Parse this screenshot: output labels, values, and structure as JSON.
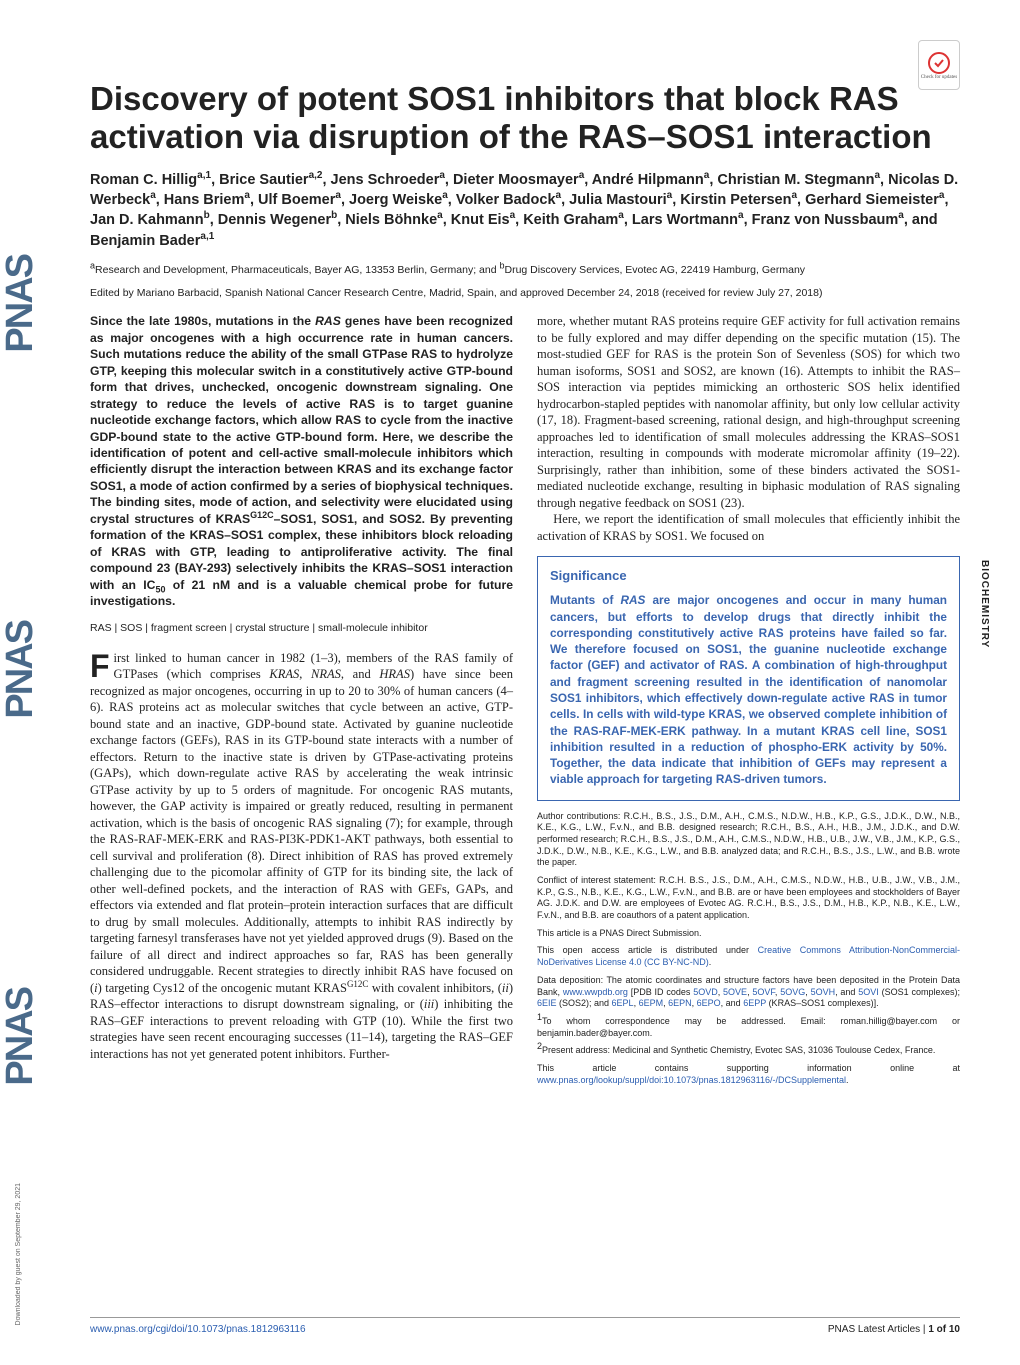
{
  "journal": {
    "sidebar_text": "PNAS",
    "side_right": "BIOCHEMISTRY",
    "side_left": "Downloaded by guest on September 29, 2021",
    "check_updates": "Check for updates"
  },
  "title": "Discovery of potent SOS1 inhibitors that block RAS activation via disruption of the RAS–SOS1 interaction",
  "authors_html": "Roman C. Hillig<sup>a,1</sup>, Brice Sautier<sup>a,2</sup>, Jens Schroeder<sup>a</sup>, Dieter Moosmayer<sup>a</sup>, André Hilpmann<sup>a</sup>, Christian M. Stegmann<sup>a</sup>, Nicolas D. Werbeck<sup>a</sup>, Hans Briem<sup>a</sup>, Ulf Boemer<sup>a</sup>, Joerg Weiske<sup>a</sup>, Volker Badock<sup>a</sup>, Julia Mastouri<sup>a</sup>, Kirstin Petersen<sup>a</sup>, Gerhard Siemeister<sup>a</sup>, Jan D. Kahmann<sup>b</sup>, Dennis Wegener<sup>b</sup>, Niels Böhnke<sup>a</sup>, Knut Eis<sup>a</sup>, Keith Graham<sup>a</sup>, Lars Wortmann<sup>a</sup>, Franz von Nussbaum<sup>a</sup>, and Benjamin Bader<sup>a,1</sup>",
  "affiliations": "<sup>a</sup>Research and Development, Pharmaceuticals, Bayer AG, 13353 Berlin, Germany; and <sup>b</sup>Drug Discovery Services, Evotec AG, 22419 Hamburg, Germany",
  "edited_by": "Edited by Mariano Barbacid, Spanish National Cancer Research Centre, Madrid, Spain, and approved December 24, 2018 (received for review July 27, 2018)",
  "abstract": "Since the late 1980s, mutations in the <i>RAS</i> genes have been recognized as major oncogenes with a high occurrence rate in human cancers. Such mutations reduce the ability of the small GTPase RAS to hydrolyze GTP, keeping this molecular switch in a constitutively active GTP-bound form that drives, unchecked, oncogenic downstream signaling. One strategy to reduce the levels of active RAS is to target guanine nucleotide exchange factors, which allow RAS to cycle from the inactive GDP-bound state to the active GTP-bound form. Here, we describe the identification of potent and cell-active small-molecule inhibitors which efficiently disrupt the interaction between KRAS and its exchange factor SOS1, a mode of action confirmed by a series of biophysical techniques. The binding sites, mode of action, and selectivity were elucidated using crystal structures of KRAS<sup>G12C</sup>–SOS1, SOS1, and SOS2. By preventing formation of the KRAS–SOS1 complex, these inhibitors block reloading of KRAS with GTP, leading to antiproliferative activity. The final compound 23 (BAY-293) selectively inhibits the KRAS–SOS1 interaction with an IC<sub>50</sub> of 21 nM and is a valuable chemical probe for future investigations.",
  "keywords": "RAS | SOS | fragment screen | crystal structure | small-molecule inhibitor",
  "body_left": "irst linked to human cancer in 1982 (1–3), members of the RAS family of GTPases (which comprises <i>KRAS</i>, <i>NRAS</i>, and <i>HRAS</i>) have since been recognized as major oncogenes, occurring in up to 20 to 30% of human cancers (4–6). RAS proteins act as molecular switches that cycle between an active, GTP-bound state and an inactive, GDP-bound state. Activated by guanine nucleotide exchange factors (GEFs), RAS in its GTP-bound state interacts with a number of effectors. Return to the inactive state is driven by GTPase-activating proteins (GAPs), which down-regulate active RAS by accelerating the weak intrinsic GTPase activity by up to 5 orders of magnitude. For oncogenic RAS mutants, however, the GAP activity is impaired or greatly reduced, resulting in permanent activation, which is the basis of oncogenic RAS signaling (7); for example, through the RAS-RAF-MEK-ERK and RAS-PI3K-PDK1-AKT pathways, both essential to cell survival and proliferation (8). Direct inhibition of RAS has proved extremely challenging due to the picomolar affinity of GTP for its binding site, the lack of other well-defined pockets, and the interaction of RAS with GEFs, GAPs, and effectors via extended and flat protein–protein interaction surfaces that are difficult to drug by small molecules. Additionally, attempts to inhibit RAS indirectly by targeting farnesyl transferases have not yet yielded approved drugs (9). Based on the failure of all direct and indirect approaches so far, RAS has been generally considered undruggable. Recent strategies to directly inhibit RAS have focused on (<i>i</i>) targeting Cys12 of the oncogenic mutant KRAS<sup>G12C</sup> with covalent inhibitors, (<i>ii</i>) RAS–effector interactions to disrupt downstream signaling, or (<i>iii</i>) inhibiting the RAS–GEF interactions to prevent reloading with GTP (10). While the first two strategies have seen recent encouraging successes (11–14), targeting the RAS–GEF interactions has not yet generated potent inhibitors. Further-",
  "body_right_top": "more, whether mutant RAS proteins require GEF activity for full activation remains to be fully explored and may differ depending on the specific mutation (15). The most-studied GEF for RAS is the protein Son of Sevenless (SOS) for which two human isoforms, SOS1 and SOS2, are known (16). Attempts to inhibit the RAS–SOS interaction via peptides mimicking an orthosteric SOS helix identified hydrocarbon-stapled peptides with nanomolar affinity, but only low cellular activity (17, 18). Fragment-based screening, rational design, and high-throughput screening approaches led to identification of small molecules addressing the KRAS–SOS1 interaction, resulting in compounds with moderate micromolar affinity (19–22). Surprisingly, rather than inhibition, some of these binders activated the SOS1-mediated nucleotide exchange, resulting in biphasic modulation of RAS signaling through negative feedback on SOS1 (23).",
  "body_right_p2": "Here, we report the identification of small molecules that efficiently inhibit the activation of KRAS by SOS1. We focused on",
  "significance": {
    "title": "Significance",
    "body": "Mutants of <i>RAS</i> are major oncogenes and occur in many human cancers, but efforts to develop drugs that directly inhibit the corresponding constitutively active RAS proteins have failed so far. We therefore focused on SOS1, the guanine nucleotide exchange factor (GEF) and activator of RAS. A combination of high-throughput and fragment screening resulted in the identification of nanomolar SOS1 inhibitors, which effectively down-regulate active RAS in tumor cells. In cells with wild-type KRAS, we observed complete inhibition of the RAS-RAF-MEK-ERK pathway. In a mutant KRAS cell line, SOS1 inhibition resulted in a reduction of phospho-ERK activity by 50%. Together, the data indicate that inhibition of GEFs may represent a viable approach for targeting RAS-driven tumors."
  },
  "fineprint": {
    "author_contrib": "Author contributions: R.C.H., B.S., J.S., D.M., A.H., C.M.S., N.D.W., H.B., K.P., G.S., J.D.K., D.W., N.B., K.E., K.G., L.W., F.v.N., and B.B. designed research; R.C.H., B.S., A.H., H.B., J.M., J.D.K., and D.W. performed research; R.C.H., B.S., J.S., D.M., A.H., C.M.S., N.D.W., H.B., U.B., J.W., V.B., J.M., K.P., G.S., J.D.K., D.W., N.B., K.E., K.G., L.W., and B.B. analyzed data; and R.C.H., B.S., J.S., L.W., and B.B. wrote the paper.",
    "conflict": "Conflict of interest statement: R.C.H. B.S., J.S., D.M., A.H., C.M.S., N.D.W., H.B., U.B., J.W., V.B., J.M., K.P., G.S., N.B., K.E., K.G., L.W., F.v.N., and B.B. are or have been employees and stockholders of Bayer AG. J.D.K. and D.W. are employees of Evotec AG. R.C.H., B.S., J.S., D.M., H.B., K.P., N.B., K.E., L.W., F.v.N., and B.B. are coauthors of a patent application.",
    "direct_sub": "This article is a PNAS Direct Submission.",
    "license_pre": "This open access article is distributed under ",
    "license_link": "Creative Commons Attribution-NonCommercial-NoDerivatives License 4.0 (CC BY-NC-ND)",
    "data_dep": "Data deposition: The atomic coordinates and structure factors have been deposited in the Protein Data Bank, <a>www.wwpdb.org</a> [PDB ID codes <a>5OVD</a>, <a>5OVE</a>, <a>5OVF</a>, <a>5OVG</a>, <a>5OVH</a>, and <a>5OVI</a> (SOS1 complexes); <a>6EIE</a> (SOS2); and <a>6EPL</a>, <a>6EPM</a>, <a>6EPN</a>, <a>6EPO</a>, and <a>6EPP</a> (KRAS–SOS1 complexes)].",
    "corr": "<sup>1</sup>To whom correspondence may be addressed. Email: roman.hillig@bayer.com or benjamin.bader@bayer.com.",
    "present": "<sup>2</sup>Present address: Medicinal and Synthetic Chemistry, Evotec SAS, 31036 Toulouse Cedex, France.",
    "supp_pre": "This article contains supporting information online at ",
    "supp_link": "www.pnas.org/lookup/suppl/doi:10.1073/pnas.1812963116/-/DCSupplemental"
  },
  "footer": {
    "doi": "www.pnas.org/cgi/doi/10.1073/pnas.1812963116",
    "right": "PNAS Latest Articles | <b>1 of 10</b>"
  }
}
